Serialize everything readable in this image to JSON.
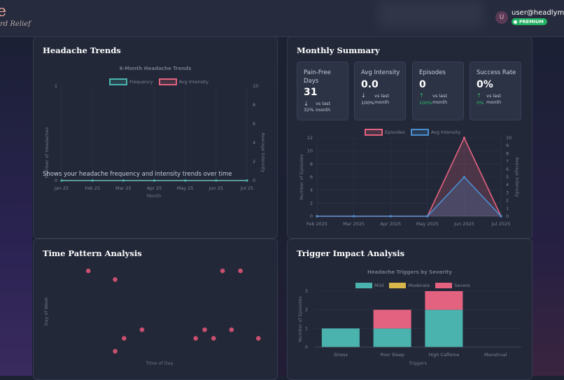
{
  "header": {
    "brand_title": "e",
    "brand_tagline": "rd Relief",
    "user_initial": "U",
    "user_email": "user@headlyme.c",
    "badge": "PREMIUM"
  },
  "trends_card": {
    "title": "Headache Trends",
    "description": "Shows your headache frequency and intensity trends over time"
  },
  "summary_card": {
    "title": "Monthly Summary",
    "stats": [
      {
        "label": "Pain-Free Days",
        "value": "31",
        "arrow": "↓",
        "change": "32%",
        "vs": "vs last month",
        "positive": false
      },
      {
        "label": "Avg Intensity",
        "value": "0.0",
        "arrow": "↓",
        "change": "100%",
        "vs": "vs last month",
        "positive": false
      },
      {
        "label": "Episodes",
        "value": "0",
        "arrow": "↑",
        "change": "100%",
        "vs": "vs last month",
        "positive": true
      },
      {
        "label": "Success Rate",
        "value": "0%",
        "arrow": "↑",
        "change": "0%",
        "vs": "vs last month",
        "positive": true
      }
    ]
  },
  "time_card": {
    "title": "Time Pattern Analysis"
  },
  "trigger_card": {
    "title": "Trigger Impact Analysis"
  },
  "colors": {
    "teal": "#4ab3ad",
    "pink": "#e3627f",
    "blue": "#4b8fd0",
    "yellow": "#d9b64a",
    "green": "#22b063"
  },
  "chart_data": [
    {
      "type": "line",
      "title": "6-Month Headache Trends",
      "x": [
        "Jan 25",
        "Feb 25",
        "Mar 25",
        "Apr 25",
        "May 25",
        "Jun 25",
        "Jul 25"
      ],
      "series": [
        {
          "name": "Frequency",
          "values": [
            0,
            0,
            0,
            0,
            0,
            0,
            0
          ]
        },
        {
          "name": "Avg Intensity",
          "values": [
            0,
            0,
            0,
            0,
            0,
            0,
            0
          ]
        }
      ],
      "xlabel": "Month",
      "ylabel": "Number of Headaches",
      "y2label": "Average Intensity",
      "y_ticks": [
        "0",
        "1"
      ],
      "y2_ticks": [
        "0",
        "2",
        "4",
        "6",
        "8",
        "10"
      ],
      "ylim": [
        0,
        1
      ],
      "y2lim": [
        0,
        10
      ],
      "legend": "top"
    },
    {
      "type": "line",
      "x": [
        "Feb 2025",
        "Mar 2025",
        "Apr 2025",
        "May 2025",
        "Jun 2025",
        "Jul 2025"
      ],
      "series": [
        {
          "name": "Episodes",
          "values": [
            0,
            0,
            0,
            0,
            12,
            0
          ]
        },
        {
          "name": "Avg Intensity",
          "values": [
            0,
            0,
            0,
            0,
            5,
            0
          ]
        }
      ],
      "ylabel": "Number of Episodes",
      "y2label": "Average Intensity",
      "y_ticks": [
        "0",
        "2",
        "4",
        "6",
        "8",
        "10",
        "12"
      ],
      "y2_ticks": [
        "0",
        "1",
        "2",
        "3",
        "4",
        "5",
        "6",
        "7",
        "8",
        "9",
        "10"
      ],
      "ylim": [
        0,
        12
      ],
      "y2lim": [
        0,
        10
      ],
      "legend": "top"
    },
    {
      "type": "scatter",
      "xlabel": "Time of Day",
      "ylabel": "Day of Week",
      "points": [
        {
          "x": 4,
          "y": 5.8
        },
        {
          "x": 7,
          "y": 5.2
        },
        {
          "x": 7,
          "y": 0.2
        },
        {
          "x": 8,
          "y": 1.1
        },
        {
          "x": 10,
          "y": 1.7
        },
        {
          "x": 16,
          "y": 1.1
        },
        {
          "x": 17,
          "y": 1.7
        },
        {
          "x": 18,
          "y": 1.1
        },
        {
          "x": 19,
          "y": 5.8
        },
        {
          "x": 20,
          "y": 1.7
        },
        {
          "x": 21,
          "y": 5.8
        },
        {
          "x": 23,
          "y": 1.1
        }
      ]
    },
    {
      "type": "bar",
      "title": "Headache Triggers by Severity",
      "categories": [
        "Stress",
        "Poor Sleep",
        "High Caffeine",
        "Menstrual"
      ],
      "series": [
        {
          "name": "Mild",
          "values": [
            1,
            1,
            2,
            0
          ]
        },
        {
          "name": "Moderate",
          "values": [
            0,
            0,
            0,
            0
          ]
        },
        {
          "name": "Severe",
          "values": [
            0,
            1,
            1,
            0
          ]
        }
      ],
      "xlabel": "Triggers",
      "ylabel": "Number of Episodes",
      "y_ticks": [
        "0",
        "1",
        "2",
        "3"
      ],
      "ylim": [
        0,
        3
      ],
      "stacked": true,
      "legend": "top"
    }
  ]
}
